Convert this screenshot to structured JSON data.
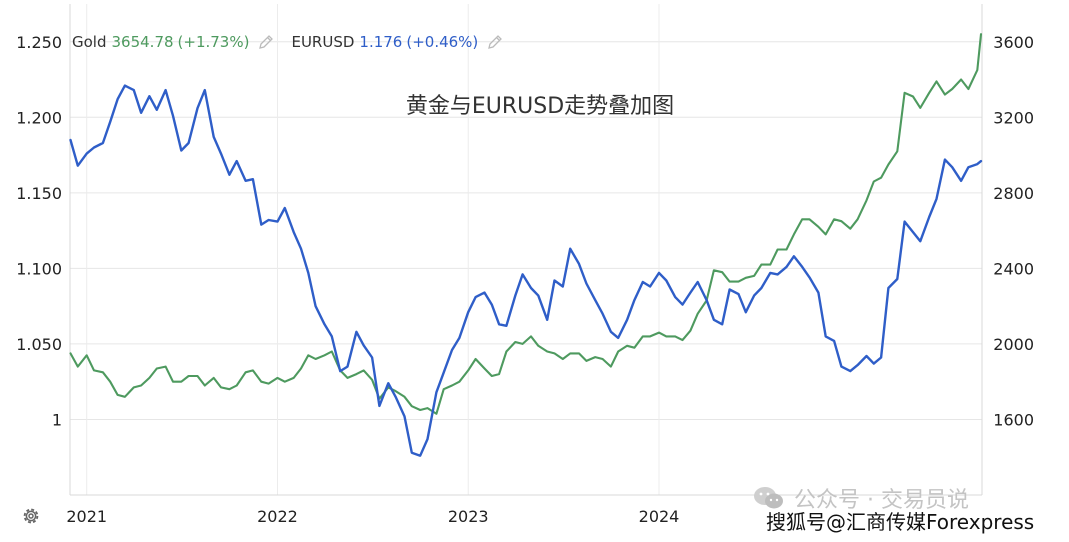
{
  "legend": {
    "gold": {
      "name": "Gold",
      "value": "3654.78",
      "change": "(+1.73%)",
      "color": "#4e9a5f"
    },
    "eurusd": {
      "name": "EURUSD",
      "value": "1.176",
      "change": "(+0.46%)",
      "color": "#2f5ec8"
    },
    "edit_icon": "pencil-icon"
  },
  "settings_icon": "gear-icon",
  "watermark": {
    "account": "公众号 · 交易员说",
    "account_icon": "wechat-icon",
    "source": "搜狐号@汇商传媒Forexpress"
  },
  "chart_data": {
    "type": "line",
    "title": "黄金与EURUSD走势叠加图",
    "x_ticks": [
      "2021",
      "2022",
      "2023",
      "2024"
    ],
    "xlim": [
      "2020-11-30",
      "2025-09-10"
    ],
    "left_axis": {
      "series": "EURUSD",
      "ylim": [
        0.95,
        1.275
      ],
      "ticks": [
        1,
        1.05,
        1.1,
        1.15,
        1.2,
        1.25
      ],
      "tick_labels": [
        "1",
        "1.050",
        "1.100",
        "1.150",
        "1.200",
        "1.250"
      ]
    },
    "right_axis": {
      "series": "Gold",
      "ylim": [
        1200,
        3800
      ],
      "ticks": [
        1600,
        2000,
        2400,
        2800,
        3200,
        3600
      ],
      "tick_labels": [
        "1600",
        "2000",
        "2400",
        "2800",
        "3200",
        "3600"
      ]
    },
    "grid": true,
    "legend_position": "top-left",
    "series": [
      {
        "name": "EURUSD",
        "axis": "left",
        "color": "#2f5ec8",
        "x": [
          "2020-12-01",
          "2020-12-15",
          "2021-01-01",
          "2021-01-15",
          "2021-02-01",
          "2021-02-15",
          "2021-03-01",
          "2021-03-15",
          "2021-04-01",
          "2021-04-15",
          "2021-05-01",
          "2021-05-15",
          "2021-06-01",
          "2021-06-15",
          "2021-07-01",
          "2021-07-15",
          "2021-08-01",
          "2021-08-15",
          "2021-09-01",
          "2021-09-15",
          "2021-10-01",
          "2021-10-15",
          "2021-11-01",
          "2021-11-15",
          "2021-12-01",
          "2021-12-15",
          "2022-01-01",
          "2022-01-15",
          "2022-02-01",
          "2022-02-15",
          "2022-03-01",
          "2022-03-15",
          "2022-04-01",
          "2022-04-15",
          "2022-05-01",
          "2022-05-15",
          "2022-06-01",
          "2022-06-15",
          "2022-07-01",
          "2022-07-15",
          "2022-08-01",
          "2022-08-15",
          "2022-09-01",
          "2022-09-15",
          "2022-10-01",
          "2022-10-15",
          "2022-11-01",
          "2022-11-15",
          "2022-12-01",
          "2022-12-15",
          "2023-01-01",
          "2023-01-15",
          "2023-02-01",
          "2023-02-15",
          "2023-03-01",
          "2023-03-15",
          "2023-04-01",
          "2023-04-15",
          "2023-05-01",
          "2023-05-15",
          "2023-06-01",
          "2023-06-15",
          "2023-07-01",
          "2023-07-15",
          "2023-08-01",
          "2023-08-15",
          "2023-09-01",
          "2023-09-15",
          "2023-10-01",
          "2023-10-15",
          "2023-11-01",
          "2023-11-15",
          "2023-12-01",
          "2023-12-15",
          "2024-01-01",
          "2024-01-15",
          "2024-02-01",
          "2024-02-15",
          "2024-03-01",
          "2024-03-15",
          "2024-04-01",
          "2024-04-15",
          "2024-05-01",
          "2024-05-15",
          "2024-06-01",
          "2024-06-15",
          "2024-07-01",
          "2024-07-15",
          "2024-08-01",
          "2024-08-15",
          "2024-09-01",
          "2024-09-15",
          "2024-10-01",
          "2024-10-15",
          "2024-11-01",
          "2024-11-15",
          "2024-12-01",
          "2024-12-15",
          "2025-01-01",
          "2025-01-15",
          "2025-02-01",
          "2025-02-15",
          "2025-03-01",
          "2025-03-15",
          "2025-04-01",
          "2025-04-15",
          "2025-05-01",
          "2025-05-15",
          "2025-06-01",
          "2025-06-15",
          "2025-07-01",
          "2025-07-15",
          "2025-08-01",
          "2025-08-15",
          "2025-09-01",
          "2025-09-08"
        ],
        "values": [
          1.185,
          1.168,
          1.176,
          1.18,
          1.183,
          1.197,
          1.212,
          1.221,
          1.218,
          1.203,
          1.214,
          1.205,
          1.218,
          1.201,
          1.178,
          1.183,
          1.206,
          1.218,
          1.187,
          1.176,
          1.162,
          1.171,
          1.158,
          1.159,
          1.129,
          1.132,
          1.131,
          1.14,
          1.124,
          1.113,
          1.097,
          1.075,
          1.063,
          1.055,
          1.032,
          1.035,
          1.058,
          1.049,
          1.041,
          1.009,
          1.024,
          1.015,
          1.002,
          0.978,
          0.976,
          0.987,
          1.018,
          1.031,
          1.046,
          1.054,
          1.071,
          1.081,
          1.084,
          1.076,
          1.063,
          1.062,
          1.082,
          1.096,
          1.087,
          1.082,
          1.066,
          1.092,
          1.088,
          1.113,
          1.103,
          1.09,
          1.079,
          1.07,
          1.058,
          1.054,
          1.066,
          1.079,
          1.091,
          1.088,
          1.097,
          1.092,
          1.081,
          1.076,
          1.084,
          1.091,
          1.079,
          1.066,
          1.063,
          1.086,
          1.083,
          1.071,
          1.082,
          1.087,
          1.097,
          1.096,
          1.101,
          1.108,
          1.101,
          1.094,
          1.084,
          1.055,
          1.052,
          1.035,
          1.032,
          1.036,
          1.042,
          1.037,
          1.041,
          1.087,
          1.093,
          1.131,
          1.124,
          1.118,
          1.134,
          1.146,
          1.172,
          1.167,
          1.158,
          1.167,
          1.169,
          1.171
        ]
      },
      {
        "name": "Gold",
        "axis": "right",
        "color": "#4e9a5f",
        "x": [
          "2020-12-01",
          "2020-12-15",
          "2021-01-01",
          "2021-01-15",
          "2021-02-01",
          "2021-02-15",
          "2021-03-01",
          "2021-03-15",
          "2021-04-01",
          "2021-04-15",
          "2021-05-01",
          "2021-05-15",
          "2021-06-01",
          "2021-06-15",
          "2021-07-01",
          "2021-07-15",
          "2021-08-01",
          "2021-08-15",
          "2021-09-01",
          "2021-09-15",
          "2021-10-01",
          "2021-10-15",
          "2021-11-01",
          "2021-11-15",
          "2021-12-01",
          "2021-12-15",
          "2022-01-01",
          "2022-01-15",
          "2022-02-01",
          "2022-02-15",
          "2022-03-01",
          "2022-03-15",
          "2022-04-01",
          "2022-04-15",
          "2022-05-01",
          "2022-05-15",
          "2022-06-01",
          "2022-06-15",
          "2022-07-01",
          "2022-07-15",
          "2022-08-01",
          "2022-08-15",
          "2022-09-01",
          "2022-09-15",
          "2022-10-01",
          "2022-10-15",
          "2022-11-01",
          "2022-11-15",
          "2022-12-01",
          "2022-12-15",
          "2023-01-01",
          "2023-01-15",
          "2023-02-01",
          "2023-02-15",
          "2023-03-01",
          "2023-03-15",
          "2023-04-01",
          "2023-04-15",
          "2023-05-01",
          "2023-05-15",
          "2023-06-01",
          "2023-06-15",
          "2023-07-01",
          "2023-07-15",
          "2023-08-01",
          "2023-08-15",
          "2023-09-01",
          "2023-09-15",
          "2023-10-01",
          "2023-10-15",
          "2023-11-01",
          "2023-11-15",
          "2023-12-01",
          "2023-12-15",
          "2024-01-01",
          "2024-01-15",
          "2024-02-01",
          "2024-02-15",
          "2024-03-01",
          "2024-03-15",
          "2024-04-01",
          "2024-04-15",
          "2024-05-01",
          "2024-05-15",
          "2024-06-01",
          "2024-06-15",
          "2024-07-01",
          "2024-07-15",
          "2024-08-01",
          "2024-08-15",
          "2024-09-01",
          "2024-09-15",
          "2024-10-01",
          "2024-10-15",
          "2024-11-01",
          "2024-11-15",
          "2024-12-01",
          "2024-12-15",
          "2025-01-01",
          "2025-01-15",
          "2025-02-01",
          "2025-02-15",
          "2025-03-01",
          "2025-03-15",
          "2025-04-01",
          "2025-04-15",
          "2025-05-01",
          "2025-05-15",
          "2025-06-01",
          "2025-06-15",
          "2025-07-01",
          "2025-07-15",
          "2025-08-01",
          "2025-08-15",
          "2025-09-01",
          "2025-09-08"
        ],
        "values": [
          1950,
          1880,
          1940,
          1860,
          1850,
          1800,
          1730,
          1720,
          1770,
          1780,
          1820,
          1870,
          1880,
          1800,
          1800,
          1830,
          1830,
          1780,
          1820,
          1770,
          1760,
          1780,
          1850,
          1860,
          1800,
          1790,
          1820,
          1800,
          1820,
          1870,
          1940,
          1920,
          1940,
          1960,
          1860,
          1820,
          1840,
          1860,
          1810,
          1710,
          1770,
          1750,
          1720,
          1670,
          1650,
          1660,
          1630,
          1760,
          1780,
          1800,
          1860,
          1920,
          1870,
          1830,
          1840,
          1960,
          2010,
          2000,
          2040,
          1990,
          1960,
          1950,
          1920,
          1950,
          1950,
          1910,
          1930,
          1920,
          1880,
          1960,
          1990,
          1980,
          2040,
          2040,
          2060,
          2040,
          2040,
          2020,
          2070,
          2160,
          2230,
          2390,
          2380,
          2330,
          2330,
          2350,
          2360,
          2420,
          2420,
          2500,
          2500,
          2580,
          2660,
          2660,
          2620,
          2580,
          2660,
          2650,
          2610,
          2660,
          2760,
          2860,
          2880,
          2950,
          3020,
          3330,
          3310,
          3250,
          3330,
          3390,
          3320,
          3350,
          3400,
          3350,
          3450,
          3640
        ]
      }
    ]
  }
}
